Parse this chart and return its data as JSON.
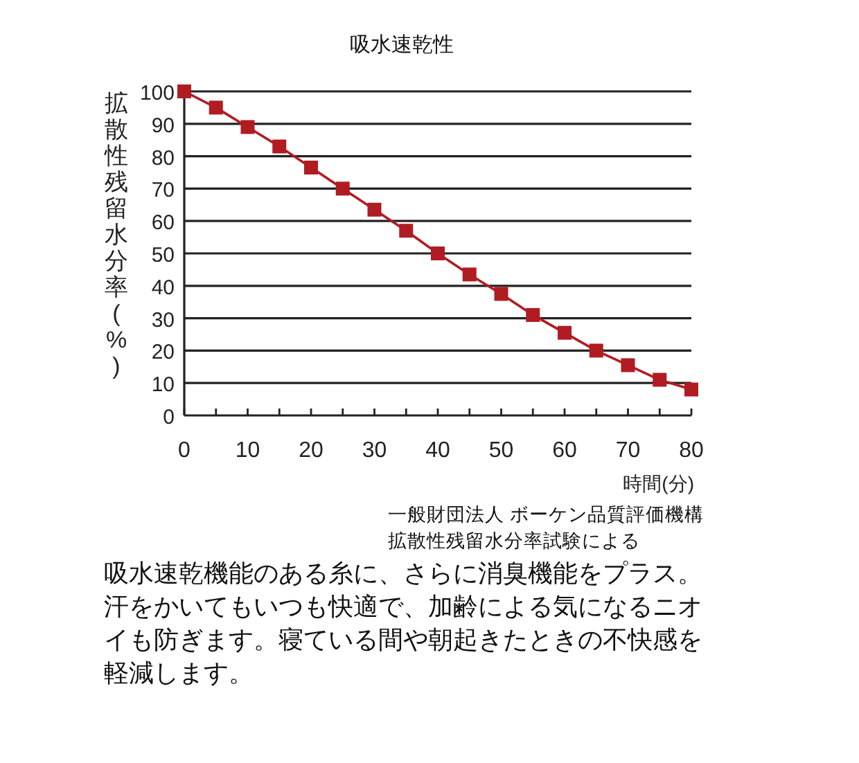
{
  "chart_data": {
    "type": "line",
    "title": "吸水速乾性",
    "xlabel": "時間(分)",
    "ylabel": "拡散性残留水分率(%)",
    "x": [
      0,
      5,
      10,
      15,
      20,
      25,
      30,
      35,
      40,
      45,
      50,
      55,
      60,
      65,
      70,
      75,
      80
    ],
    "series": [
      {
        "color": "#b01c22",
        "values": [
          100,
          95,
          89,
          83,
          76.5,
          70,
          63.5,
          57,
          50,
          43.5,
          37.5,
          31,
          25.5,
          20,
          15.5,
          11,
          8
        ]
      }
    ],
    "xlim": [
      0,
      80
    ],
    "ylim": [
      0,
      100
    ],
    "xticks": [
      0,
      {
        "value": 5,
        "label": null
      },
      10,
      {
        "value": 15,
        "label": null
      },
      20,
      {
        "value": 25,
        "label": null
      },
      30,
      {
        "value": 35,
        "label": null
      },
      40,
      {
        "value": 45,
        "label": null
      },
      50,
      {
        "value": 55,
        "label": null
      },
      60,
      {
        "value": 65,
        "label": null
      },
      70,
      {
        "value": 75,
        "label": null
      },
      80
    ],
    "yticks": [
      0,
      10,
      20,
      30,
      40,
      50,
      60,
      70,
      80,
      90,
      100
    ],
    "grid": "y",
    "marker": "square",
    "line_style": "solid",
    "annotations": [
      "一般財団法人 ボーケン品質評価機構拡散性残留水分率試験による",
      "吸水速乾機能のある糸に、さらに消臭機能をプラス。汗をかいてもいつも快適で、加齢による気になるニオイも防ぎます。寝ている間や朝起きたときの不快感を軽減します。"
    ]
  }
}
